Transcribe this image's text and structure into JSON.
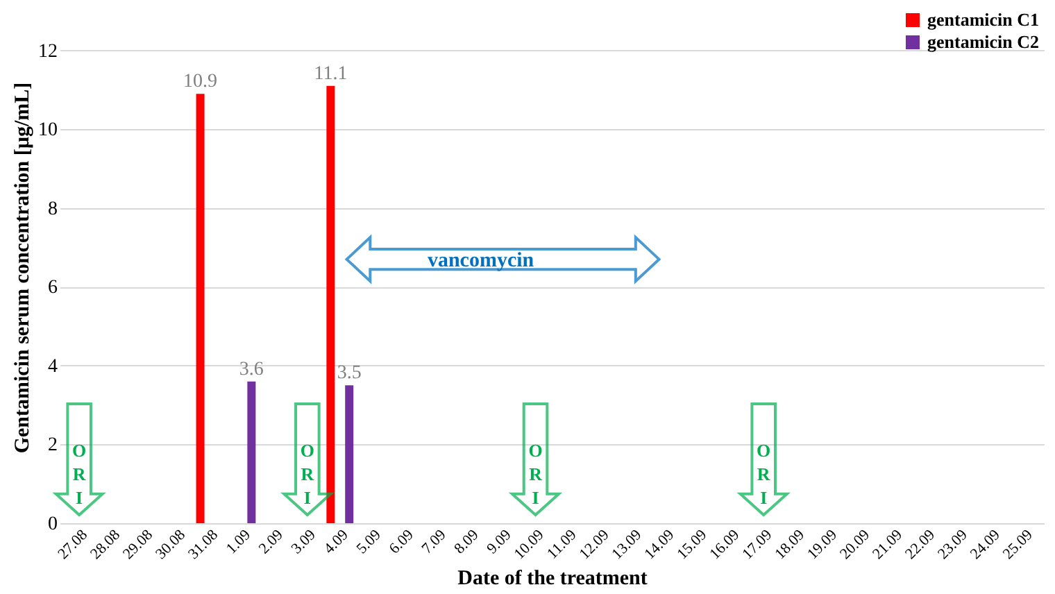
{
  "chart_data": {
    "type": "bar",
    "xlabel": "Date of the treatment",
    "ylabel": "Gentamicin serum concentration [µg/mL]",
    "categories": [
      "27.08",
      "28.08",
      "29.08",
      "30.08",
      "31.08",
      "1.09",
      "2.09",
      "3.09",
      "4.09",
      "5.09",
      "6.09",
      "7.09",
      "8.09",
      "9.09",
      "10.09",
      "11.09",
      "12.09",
      "13.09",
      "14.09",
      "15.09",
      "16.09",
      "17.09",
      "18.09",
      "19.09",
      "20.09",
      "21.09",
      "22.09",
      "23.09",
      "24.09",
      "25.09"
    ],
    "series": [
      {
        "name": "gentamicin  C1",
        "color": "#ff0000",
        "values": [
          null,
          null,
          null,
          null,
          10.9,
          null,
          null,
          null,
          11.1,
          null,
          null,
          null,
          null,
          null,
          null,
          null,
          null,
          null,
          null,
          null,
          null,
          null,
          null,
          null,
          null,
          null,
          null,
          null,
          null,
          null
        ]
      },
      {
        "name": "gentamicin C2",
        "color": "#7030a0",
        "values": [
          null,
          null,
          null,
          null,
          null,
          3.6,
          null,
          null,
          3.5,
          null,
          null,
          null,
          null,
          null,
          null,
          null,
          null,
          null,
          null,
          null,
          null,
          null,
          null,
          null,
          null,
          null,
          null,
          null,
          null,
          null
        ]
      }
    ],
    "ylim": [
      0,
      13
    ],
    "yticks": [
      0,
      2,
      4,
      6,
      8,
      10,
      12
    ],
    "grid": "y",
    "legend": "top right",
    "data_labels": true,
    "annotations": [
      "ORI",
      "ORI",
      "ORI",
      "ORI",
      "vancomycin"
    ]
  }
}
